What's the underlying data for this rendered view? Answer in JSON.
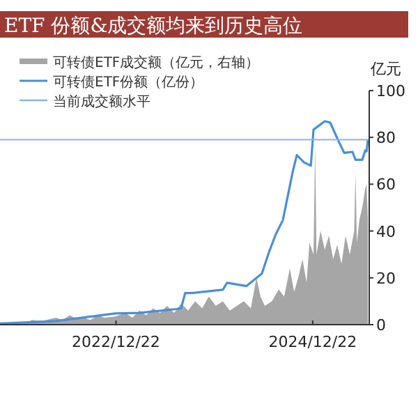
{
  "chart_data": {
    "type": "line",
    "title": "ETF 份额&成交额均来到历史高位",
    "ylabel": "亿元",
    "legend": "top left",
    "xlim": [
      "2021-10-17",
      "2025-07-20"
    ],
    "xticks": [
      {
        "value": "2022-12-22",
        "label": "2022/12/22"
      },
      {
        "value": "2024-12-22",
        "label": "2024/12/22"
      }
    ],
    "ylim": [
      0,
      100
    ],
    "yticks": [
      0,
      20,
      40,
      60,
      80,
      100
    ],
    "series": [
      {
        "name": "可转债ETF成交额（亿元，右轴）",
        "type": "area",
        "color": "#a6a6a6",
        "x": [
          "2021-10-17",
          "2022-01-28",
          "2022-02-13",
          "2022-03-21",
          "2022-05-12",
          "2022-06-07",
          "2022-07-03",
          "2022-07-28",
          "2022-08-23",
          "2022-09-18",
          "2022-10-14",
          "2022-11-09",
          "2022-12-20",
          "2023-01-26",
          "2023-02-21",
          "2023-03-19",
          "2023-04-13",
          "2023-05-09",
          "2023-06-04",
          "2023-06-30",
          "2023-07-26",
          "2023-08-21",
          "2023-09-16",
          "2023-10-12",
          "2023-11-07",
          "2023-12-02",
          "2023-12-28",
          "2024-01-23",
          "2024-02-18",
          "2024-03-15",
          "2024-04-10",
          "2024-05-06",
          "2024-05-27",
          "2024-06-11",
          "2024-06-27",
          "2024-07-23",
          "2024-08-18",
          "2024-09-07",
          "2024-09-28",
          "2024-10-14",
          "2024-10-29",
          "2024-11-14",
          "2024-11-29",
          "2024-12-10",
          "2024-12-25",
          "2024-12-31",
          "2025-01-05",
          "2025-01-20",
          "2025-02-05",
          "2025-02-20",
          "2025-03-08",
          "2025-03-23",
          "2025-04-08",
          "2025-04-23",
          "2025-05-09",
          "2025-05-25",
          "2025-05-30",
          "2025-06-04",
          "2025-06-14",
          "2025-06-24",
          "2025-07-05",
          "2025-07-10",
          "2025-07-15"
        ],
        "values": [
          0.5,
          1,
          2,
          1.5,
          3,
          2,
          4,
          2.5,
          3,
          2,
          4,
          3,
          3.5,
          5,
          3,
          6,
          4,
          7,
          5,
          8,
          5,
          9,
          6,
          10,
          7,
          12,
          8,
          10,
          6,
          8,
          10,
          7,
          20,
          12,
          8,
          10,
          15,
          12,
          24,
          14,
          20,
          28,
          18,
          35,
          30,
          77,
          30,
          40,
          32,
          38,
          28,
          34,
          26,
          38,
          30,
          40,
          65,
          35,
          45,
          50,
          58,
          60,
          45
        ]
      },
      {
        "name": "可转债ETF份额（亿份）",
        "color": "#4a8fd6",
        "x": [
          "2021-10-17",
          "2022-05-12",
          "2022-12-20",
          "2023-03-19",
          "2023-08-05",
          "2023-08-21",
          "2023-09-05",
          "2023-10-01",
          "2024-01-23",
          "2024-02-08",
          "2024-04-20",
          "2024-06-16",
          "2024-07-12",
          "2024-08-07",
          "2024-09-02",
          "2024-10-09",
          "2024-10-24",
          "2024-11-19",
          "2024-12-15",
          "2024-12-25",
          "2025-02-05",
          "2025-02-25",
          "2025-03-28",
          "2025-04-18",
          "2025-05-19",
          "2025-05-30",
          "2025-06-24",
          "2025-07-05",
          "2025-07-10",
          "2025-07-15"
        ],
        "values": [
          0.5,
          1.5,
          4.8,
          5,
          6.7,
          7,
          13.5,
          13.5,
          14.9,
          17.9,
          16.5,
          21.8,
          30.8,
          38.7,
          44.6,
          65.5,
          72.4,
          69.4,
          67.9,
          83.3,
          86.9,
          86.3,
          78.4,
          73.4,
          73.8,
          70.4,
          70.4,
          74.4,
          74,
          79
        ]
      }
    ],
    "ref_lines": [
      {
        "axis": "y",
        "value": 79,
        "label": "当前成交额水平",
        "color": "#8db4e2"
      }
    ]
  }
}
